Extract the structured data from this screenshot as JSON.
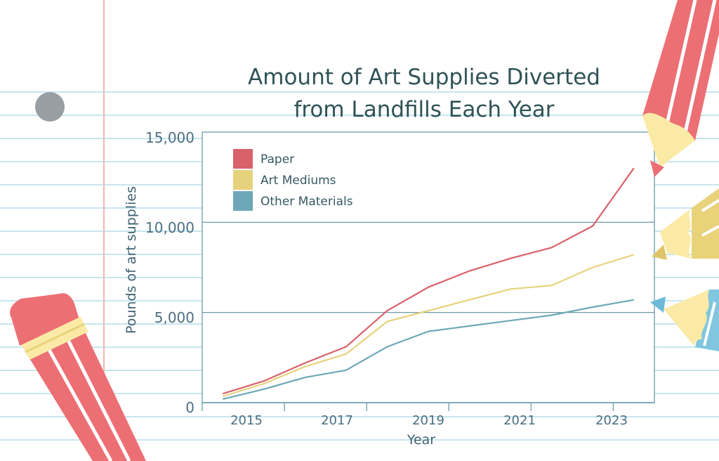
{
  "colors": {
    "paper": "#d8616a",
    "art_mediums": "#e6d27c",
    "other_materials": "#6da8b8",
    "axis": "#7fa9b6",
    "grid": "#5f8f99",
    "notebook_line": "#c7e6ee",
    "margin_line": "#f3b7b0"
  },
  "chart_data": {
    "type": "line",
    "title": [
      "Amount of Art Supplies Diverted",
      "from Landfills Each Year"
    ],
    "xlabel": "Year",
    "ylabel": "Pounds of art supplies",
    "x": [
      2014,
      2015,
      2016,
      2017,
      2018,
      2019,
      2020,
      2021,
      2022,
      2023,
      2024
    ],
    "x_tick_labels": [
      "2015",
      "2017",
      "2019",
      "2021",
      "2023"
    ],
    "x_tick_values": [
      2015,
      2017,
      2019,
      2021,
      2023
    ],
    "y_tick_labels": [
      "0",
      "5,000",
      "10,000",
      "15,000"
    ],
    "y_tick_values": [
      0,
      5000,
      10000,
      15000
    ],
    "xlim": [
      2013.5,
      2024.5
    ],
    "ylim": [
      0,
      15000
    ],
    "gridlines": [
      5000,
      10000
    ],
    "legend_position": "top-left",
    "series": [
      {
        "name": "Paper",
        "color_key": "paper",
        "values": [
          500,
          1200,
          2200,
          3100,
          5100,
          6400,
          7300,
          8000,
          8600,
          9800,
          13000
        ]
      },
      {
        "name": "Art Mediums",
        "color_key": "art_mediums",
        "values": [
          350,
          1050,
          2000,
          2700,
          4500,
          5100,
          5700,
          6300,
          6500,
          7500,
          8200
        ]
      },
      {
        "name": "Other Materials",
        "color_key": "other_materials",
        "values": [
          200,
          750,
          1400,
          1800,
          3100,
          3950,
          4250,
          4550,
          4850,
          5300,
          5700
        ]
      }
    ]
  }
}
